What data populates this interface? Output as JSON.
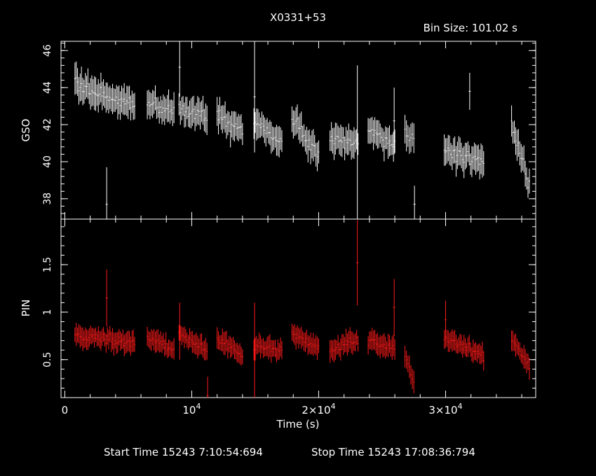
{
  "chart_data": {
    "type": "scatter",
    "title": "X0331+53",
    "bin_size_label": "Bin Size: 101.02 s",
    "xlabel": "Time (s)",
    "x_ticks": [
      {
        "value": 10000,
        "base": "10",
        "exp": "4"
      },
      {
        "value": 20000,
        "base": "2×10",
        "exp": "4"
      },
      {
        "value": 30000,
        "base": "3×10",
        "exp": "4"
      }
    ],
    "x_zero_label": "0",
    "xlim": [
      -300,
      37100
    ],
    "footer": {
      "start_label": "Start Time 15243  7:10:54:694",
      "stop_label": "Stop Time 15243 17:08:36:794"
    },
    "panels": [
      {
        "ylabel": "GSO",
        "ylim": [
          36.9,
          46.5
        ],
        "y_ticks": [
          38,
          40,
          42,
          44,
          46
        ],
        "y_tick_labels": [
          "38",
          "40",
          "42",
          "44",
          "46"
        ],
        "color": "#ffffff",
        "segments": [
          {
            "t0": 800,
            "t1": 5500,
            "v0": 44.2,
            "v1": 43.0,
            "sd": 0.55,
            "err": 0.75
          },
          {
            "t0": 6500,
            "t1": 8600,
            "v0": 43.2,
            "v1": 42.7,
            "sd": 0.45,
            "err": 0.7
          },
          {
            "t0": 9000,
            "t1": 11200,
            "v0": 42.9,
            "v1": 42.4,
            "sd": 0.45,
            "err": 0.7
          },
          {
            "t0": 12000,
            "t1": 14000,
            "v0": 42.5,
            "v1": 41.8,
            "sd": 0.45,
            "err": 0.7
          },
          {
            "t0": 14900,
            "t1": 17100,
            "v0": 42.2,
            "v1": 41.0,
            "sd": 0.45,
            "err": 0.7
          },
          {
            "t0": 17900,
            "t1": 20000,
            "v0": 42.3,
            "v1": 40.4,
            "sd": 0.45,
            "err": 0.7
          },
          {
            "t0": 20900,
            "t1": 23100,
            "v0": 41.2,
            "v1": 41.0,
            "sd": 0.45,
            "err": 0.7
          },
          {
            "t0": 23900,
            "t1": 26000,
            "v0": 41.8,
            "v1": 40.8,
            "sd": 0.45,
            "err": 0.7
          },
          {
            "t0": 26800,
            "t1": 27500,
            "v0": 41.6,
            "v1": 41.1,
            "sd": 0.4,
            "err": 0.7
          },
          {
            "t0": 29900,
            "t1": 33000,
            "v0": 40.6,
            "v1": 40.0,
            "sd": 0.45,
            "err": 0.7
          },
          {
            "t0": 35200,
            "t1": 36600,
            "v0": 42.0,
            "v1": 38.8,
            "sd": 0.45,
            "err": 0.7
          }
        ],
        "outliers": [
          {
            "x": 3300,
            "y": 37.7,
            "err": 2.0
          },
          {
            "x": 9050,
            "y": 45.1,
            "err": 1.6
          },
          {
            "x": 14950,
            "y": 43.5,
            "err": 3.0
          },
          {
            "x": 23050,
            "y": 41.0,
            "err": 4.2
          },
          {
            "x": 25950,
            "y": 42.2,
            "err": 1.8
          },
          {
            "x": 27550,
            "y": 37.7,
            "err": 1.0
          },
          {
            "x": 31900,
            "y": 43.8,
            "err": 1.0
          }
        ]
      },
      {
        "ylabel": "PIN",
        "ylim": [
          0.1,
          1.98
        ],
        "y_ticks": [
          0.5,
          1.0,
          1.5
        ],
        "y_tick_labels": [
          "0.5",
          "1",
          "1.5"
        ],
        "color": "#ff1a1a",
        "segments": [
          {
            "t0": 800,
            "t1": 5500,
            "v0": 0.75,
            "v1": 0.68,
            "sd": 0.08,
            "err": 0.1,
            "min": 0.4
          },
          {
            "t0": 6500,
            "t1": 8600,
            "v0": 0.75,
            "v1": 0.6,
            "sd": 0.07,
            "err": 0.1,
            "min": 0.38
          },
          {
            "t0": 9000,
            "t1": 11200,
            "v0": 0.78,
            "v1": 0.58,
            "sd": 0.07,
            "err": 0.1,
            "min": 0.35
          },
          {
            "t0": 12000,
            "t1": 14000,
            "v0": 0.72,
            "v1": 0.55,
            "sd": 0.07,
            "err": 0.1,
            "min": 0.42
          },
          {
            "t0": 14900,
            "t1": 17100,
            "v0": 0.65,
            "v1": 0.6,
            "sd": 0.07,
            "err": 0.1,
            "min": 0.4
          },
          {
            "t0": 17900,
            "t1": 20000,
            "v0": 0.78,
            "v1": 0.62,
            "sd": 0.07,
            "err": 0.1,
            "min": 0.4
          },
          {
            "t0": 20900,
            "t1": 23100,
            "v0": 0.6,
            "v1": 0.72,
            "sd": 0.07,
            "err": 0.1,
            "min": 0.4
          },
          {
            "t0": 23900,
            "t1": 26000,
            "v0": 0.7,
            "v1": 0.62,
            "sd": 0.07,
            "err": 0.1,
            "min": 0.35
          },
          {
            "t0": 26800,
            "t1": 27500,
            "v0": 0.55,
            "v1": 0.25,
            "sd": 0.06,
            "err": 0.1,
            "min": 0.22
          },
          {
            "t0": 29900,
            "t1": 33000,
            "v0": 0.72,
            "v1": 0.55,
            "sd": 0.07,
            "err": 0.1,
            "min": 0.38
          },
          {
            "t0": 35200,
            "t1": 36600,
            "v0": 0.72,
            "v1": 0.42,
            "sd": 0.06,
            "err": 0.1,
            "min": 0.32
          }
        ],
        "outliers": [
          {
            "x": 3300,
            "y": 1.15,
            "err": 0.3
          },
          {
            "x": 9050,
            "y": 0.8,
            "err": 0.3
          },
          {
            "x": 11250,
            "y": 0.12,
            "err": 0.2
          },
          {
            "x": 14950,
            "y": 0.6,
            "err": 0.5
          },
          {
            "x": 23050,
            "y": 1.52,
            "err": 0.45
          },
          {
            "x": 25950,
            "y": 1.05,
            "err": 0.3
          },
          {
            "x": 30000,
            "y": 0.92,
            "err": 0.2
          }
        ]
      }
    ]
  }
}
